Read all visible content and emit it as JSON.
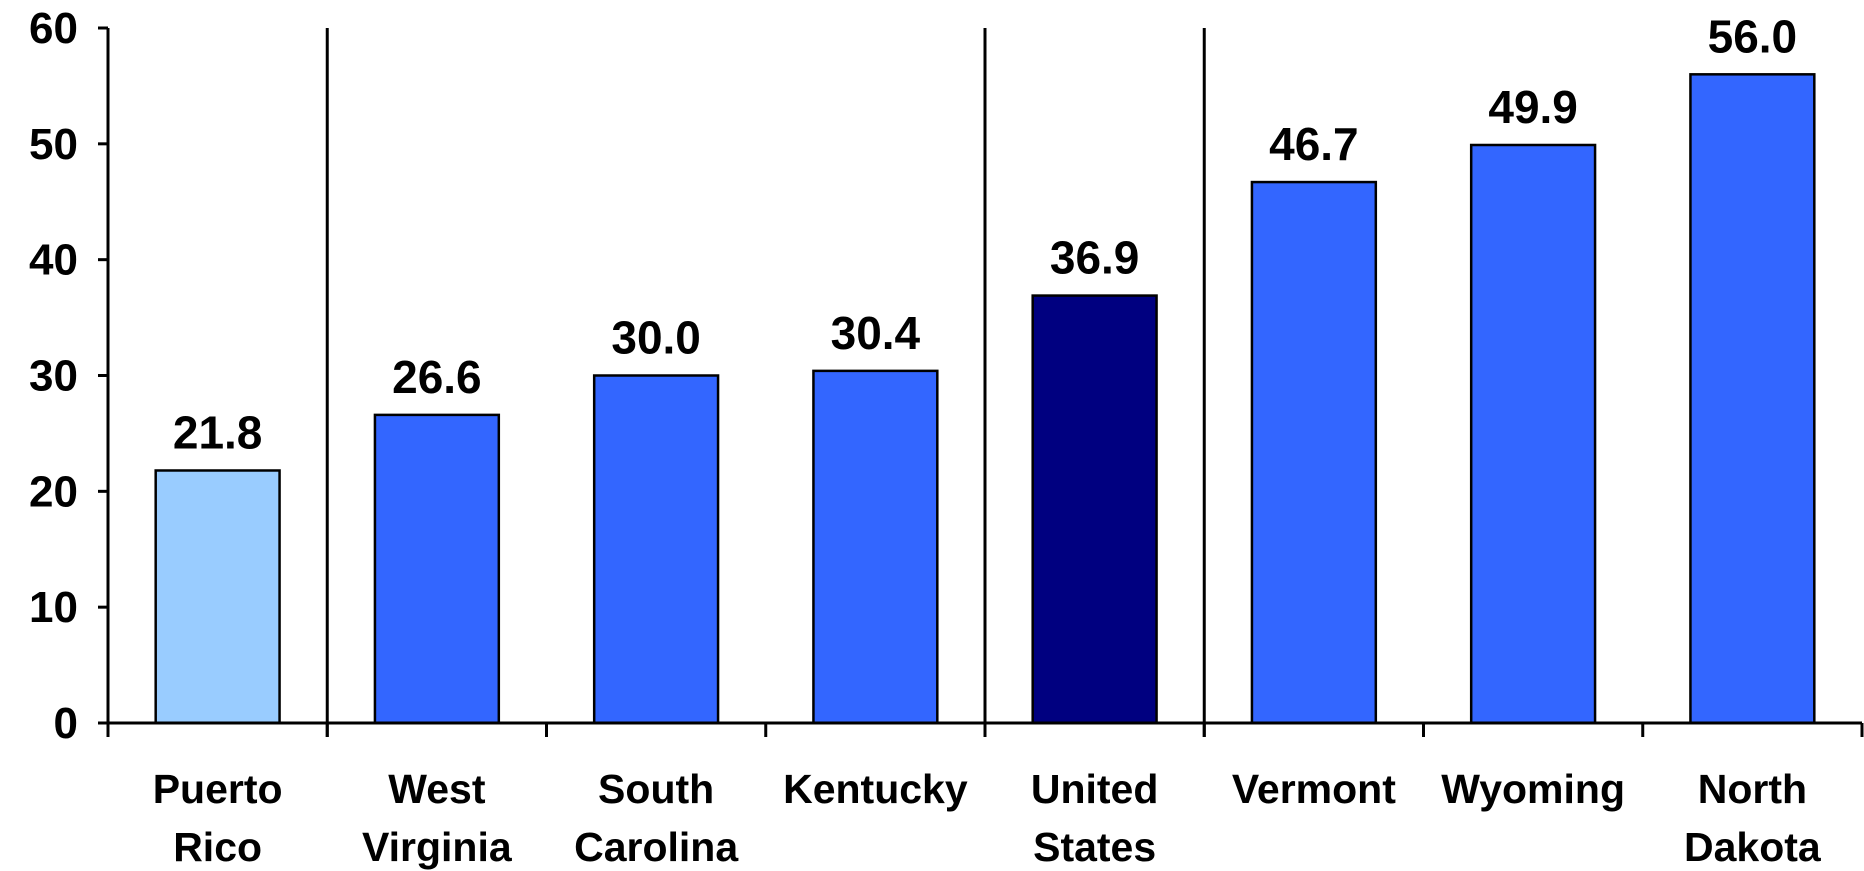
{
  "chart_data": {
    "type": "bar",
    "title": "",
    "xlabel": "",
    "ylabel": "",
    "ylim": [
      0,
      60
    ],
    "yticks": [
      "0",
      "10",
      "20",
      "30",
      "40",
      "50",
      "60"
    ],
    "grid": false,
    "categories": [
      [
        "Puerto",
        "Rico"
      ],
      [
        "West",
        "Virginia"
      ],
      [
        "South",
        "Carolina"
      ],
      [
        "Kentucky"
      ],
      [
        "United",
        "States"
      ],
      [
        "Vermont"
      ],
      [
        "Wyoming"
      ],
      [
        "North",
        "Dakota"
      ]
    ],
    "values": [
      21.8,
      26.6,
      30.0,
      30.4,
      36.9,
      46.7,
      49.9,
      56.0
    ],
    "value_labels": [
      "21.8",
      "26.6",
      "30.0",
      "30.4",
      "36.9",
      "46.7",
      "49.9",
      "56.0"
    ],
    "bar_colors": [
      "#99ccff",
      "#3366ff",
      "#3366ff",
      "#3366ff",
      "#000080",
      "#3366ff",
      "#3366ff",
      "#3366ff"
    ],
    "group_dividers_after": [
      0,
      3,
      4
    ]
  }
}
